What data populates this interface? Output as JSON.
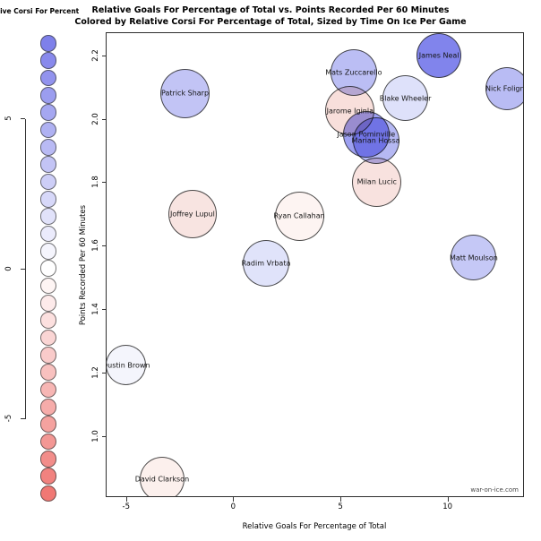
{
  "chart_data": {
    "type": "bubble",
    "title": {
      "line1": "Relative Goals For Percentage of Total vs. Points Recorded Per 60 Minutes",
      "line2": "Colored by Relative Corsi For Percentage of Total, Sized by Time On Ice Per Game"
    },
    "xlabel": "Relative Goals For Percentage of Total",
    "ylabel": "Points Recorded Per 60 Minutes",
    "xlim": [
      -5.9,
      13.6
    ],
    "ylim": [
      0.81,
      2.27
    ],
    "x_ticks": [
      {
        "value": -5,
        "label": "-5"
      },
      {
        "value": 0,
        "label": "0"
      },
      {
        "value": 5,
        "label": "5"
      },
      {
        "value": 10,
        "label": "10"
      }
    ],
    "y_ticks": [
      {
        "value": 2.2,
        "label": "2.2"
      },
      {
        "value": 2.0,
        "label": "2.0"
      },
      {
        "value": 1.8,
        "label": "1.8"
      },
      {
        "value": 1.6,
        "label": "1.6"
      },
      {
        "value": 1.4,
        "label": "1.4"
      },
      {
        "value": 1.2,
        "label": "1.2"
      },
      {
        "value": 1.0,
        "label": "1.0"
      }
    ],
    "grid": false,
    "legend": {
      "title": "Relative Corsi For Percent",
      "position": "left",
      "ticks": [
        {
          "value": 5,
          "label": "5"
        },
        {
          "value": 0,
          "label": "0"
        },
        {
          "value": -5,
          "label": "-5"
        }
      ],
      "n_circles": 27,
      "value_top": 7.5,
      "value_bottom": -7.5,
      "color_positive": "#7577e9",
      "color_zero": "#ffffff",
      "color_negative": "#ef6f6b"
    },
    "points": [
      {
        "name": "Patrick Sharp",
        "x": -2.25,
        "y": 2.08,
        "r": 27.5,
        "color": "#c2c4f5"
      },
      {
        "name": "Mats Zuccarello",
        "x": 5.62,
        "y": 2.146,
        "r": 26,
        "color": "#bbbef4"
      },
      {
        "name": "James Neal",
        "x": 9.6,
        "y": 2.2,
        "r": 25,
        "color": "#8184ec"
      },
      {
        "name": "Nick Foligno",
        "x": 12.78,
        "y": 2.095,
        "r": 24,
        "color": "#b9bcf4"
      },
      {
        "name": "Blake Wheeler",
        "x": 8.03,
        "y": 2.065,
        "r": 25.5,
        "color": "#dee1fa"
      },
      {
        "name": "Jarome Iginla",
        "x": 5.45,
        "y": 2.025,
        "r": 27.5,
        "color": "#f8dfdb"
      },
      {
        "name": "Jason Pominville",
        "x": 6.2,
        "y": 1.952,
        "r": 26,
        "color": "#9da0f1"
      },
      {
        "name": "Marian Hossa",
        "x": 6.65,
        "y": 1.932,
        "r": 26,
        "color": "#b5b8f3"
      },
      {
        "name": "Milan Lucic",
        "x": 6.7,
        "y": 1.8,
        "r": 27.5,
        "color": "#f8e2df"
      },
      {
        "name": "Joffrey Lupul",
        "x": -1.9,
        "y": 1.7,
        "r": 27,
        "color": "#f8e4e1"
      },
      {
        "name": "Ryan Callahan",
        "x": 3.08,
        "y": 1.693,
        "r": 27.5,
        "color": "#fdf4f2"
      },
      {
        "name": "Radim Vrbata",
        "x": 1.53,
        "y": 1.545,
        "r": 26,
        "color": "#e0e3fa"
      },
      {
        "name": "Matt Moulson",
        "x": 11.22,
        "y": 1.562,
        "r": 25.5,
        "color": "#c5c8f6"
      },
      {
        "name": "Dustin Brown",
        "x": -5.0,
        "y": 1.223,
        "r": 22.5,
        "color": "#f4f5fc"
      },
      {
        "name": "David Clarkson",
        "x": -3.32,
        "y": 0.863,
        "r": 25,
        "color": "#fcf0ed"
      }
    ],
    "watermark": "war-on-ice.com"
  }
}
